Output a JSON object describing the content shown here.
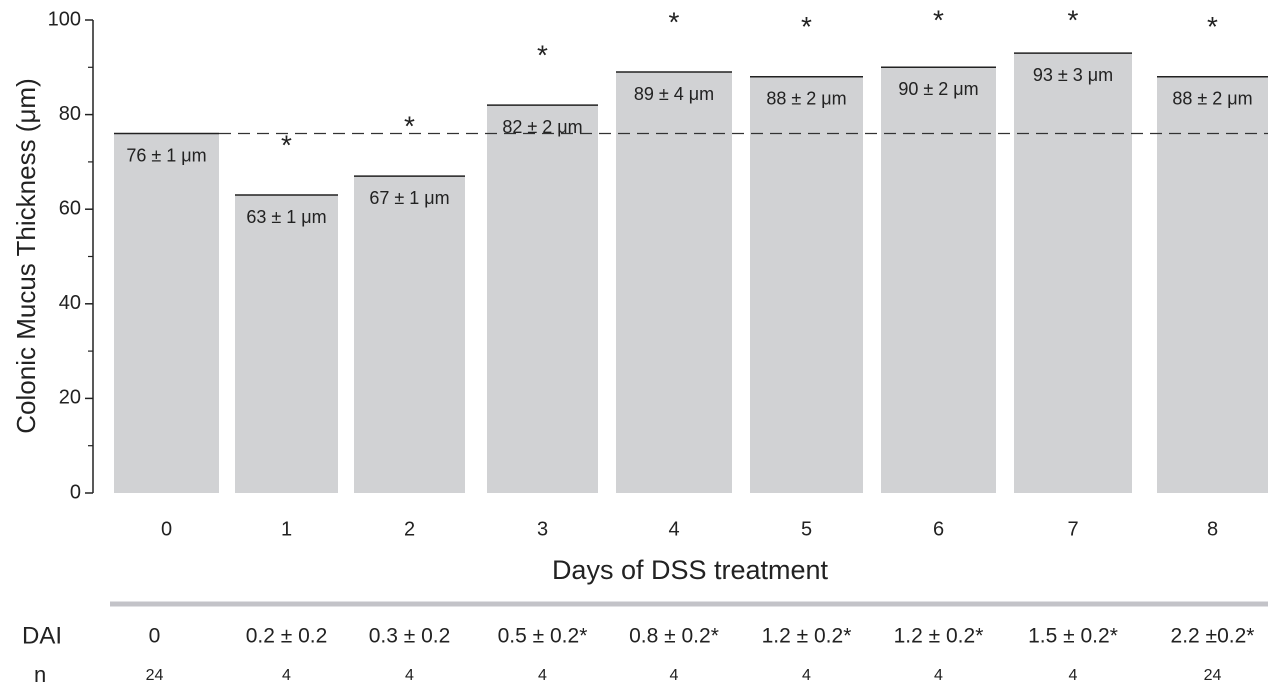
{
  "chart_data": {
    "type": "bar",
    "y_label": "Colonic Mucus Thickness (μm)",
    "x_label": "Days of DSS treatment",
    "categories": [
      "0",
      "1",
      "2",
      "3",
      "4",
      "5",
      "6",
      "7",
      "8"
    ],
    "values": [
      76,
      63,
      67,
      82,
      89,
      88,
      90,
      93,
      88
    ],
    "value_labels": [
      "76 ± 1 μm",
      "63 ± 1 μm",
      "67 ± 1 μm",
      "82 ± 2 μm",
      "89 ± 4 μm",
      "88 ± 2 μm",
      "90 ± 2 μm",
      "93 ± 3 μm",
      "88 ± 2 μm"
    ],
    "significance": [
      null,
      "*",
      "*",
      "*",
      "*",
      "*",
      "*",
      "*",
      "*"
    ],
    "color": "#d1d2d4",
    "reference_line": 76,
    "ylim": [
      0,
      100
    ],
    "yticks": [
      0,
      20,
      40,
      60,
      80,
      100
    ],
    "minor_yticks": [
      10,
      30,
      50,
      70,
      90
    ]
  },
  "table": {
    "rows": [
      {
        "label": "DAI",
        "cells": [
          "0",
          "0.2 ± 0.2",
          "0.3 ± 0.2",
          "0.5 ± 0.2*",
          "0.8 ± 0.2*",
          "1.2 ± 0.2*",
          "1.2 ± 0.2*",
          "1.5 ± 0.2*",
          "2.2 ±0.2*"
        ]
      },
      {
        "label": "n",
        "cells": [
          "24",
          "4",
          "4",
          "4",
          "4",
          "4",
          "4",
          "4",
          "24"
        ]
      }
    ]
  }
}
